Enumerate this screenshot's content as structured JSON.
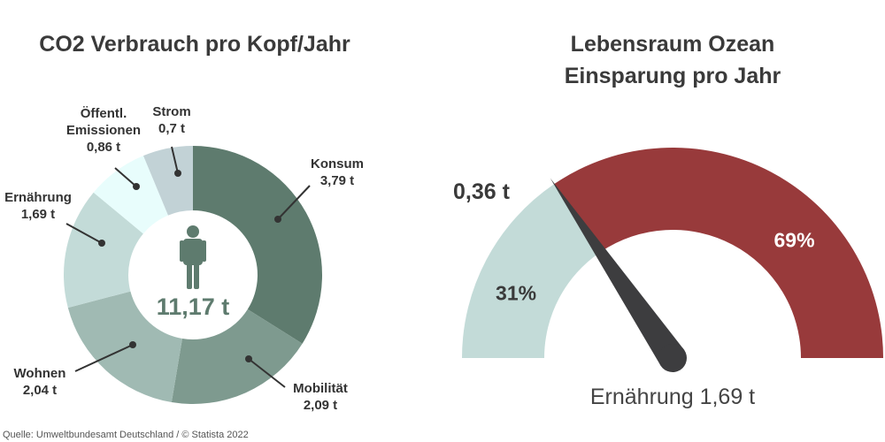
{
  "left_chart": {
    "title": "CO2 Verbrauch pro Kopf/Jahr",
    "center_label": "11,17 t",
    "icon": "person-icon"
  },
  "right_chart": {
    "title_line1": "Lebensraum Ozean",
    "title_line2": "Einsparung pro Jahr",
    "needle_label": "0,36 t",
    "caption": "Ernährung 1,69 t"
  },
  "source": "Quelle: Umweltbundesamt Deutschland / © Statista 2022",
  "colors": {
    "konsum": "#5e7b6e",
    "mobilitaet": "#7e9a8f",
    "wohnen": "#a0bab3",
    "ernaehrung": "#c3dbd8",
    "emissionen": "#e8fdfc",
    "strom": "#c2d2d6",
    "gauge_light": "#c3dbd8",
    "gauge_dark": "#983a3b",
    "needle": "#3d3d3f"
  },
  "chart_data": [
    {
      "type": "pie",
      "variant": "donut",
      "title": "CO2 Verbrauch pro Kopf/Jahr",
      "center_total": "11,17 t",
      "slices": [
        {
          "key": "konsum",
          "label_lines": [
            "Konsum",
            "3,79 t"
          ],
          "value": 3.79
        },
        {
          "key": "mobilitaet",
          "label_lines": [
            "Mobilität",
            "2,09 t"
          ],
          "value": 2.09
        },
        {
          "key": "wohnen",
          "label_lines": [
            "Wohnen",
            "2,04 t"
          ],
          "value": 2.04
        },
        {
          "key": "ernaehrung",
          "label_lines": [
            "Ernährung",
            "1,69 t"
          ],
          "value": 1.69
        },
        {
          "key": "emissionen",
          "label_lines": [
            "Öffentl.",
            "Emissionen",
            "0,86 t"
          ],
          "value": 0.86
        },
        {
          "key": "strom",
          "label_lines": [
            "Strom",
            "0,7 t"
          ],
          "value": 0.7
        }
      ]
    },
    {
      "type": "pie",
      "variant": "gauge",
      "title": "Lebensraum Ozean Einsparung pro Jahr",
      "total_label": "Ernährung 1,69 t",
      "needle_value": "0,36 t",
      "segments": [
        {
          "key": "gauge_light",
          "label": "31%",
          "value": 31
        },
        {
          "key": "gauge_dark",
          "label": "69%",
          "value": 69
        }
      ]
    }
  ]
}
